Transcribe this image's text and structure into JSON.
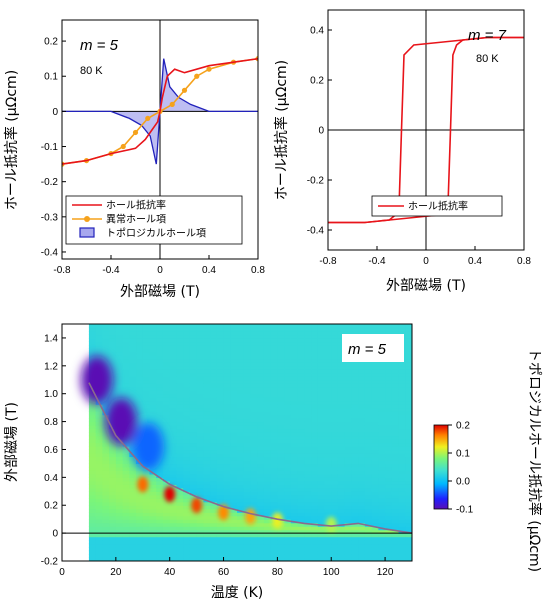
{
  "chart_data": [
    {
      "type": "line",
      "annotation_m": "m = 5",
      "annotation_temp": "80 K",
      "xlabel": "外部磁場 (T)",
      "ylabel": "ホール抵抗率 (μΩcm)",
      "xlim": [
        -0.8,
        0.8
      ],
      "ylim": [
        -0.42,
        0.26
      ],
      "x_ticks": [
        "-0.8",
        "-0.4",
        "0",
        "0.4",
        "0.8"
      ],
      "y_ticks": [
        "0.2",
        "0.1",
        "0",
        "-0.1",
        "-0.2",
        "-0.3",
        "-0.4"
      ],
      "legend_position": "bottom-left",
      "series": [
        {
          "name": "ホール抵抗率",
          "color": "#e8141a",
          "x": [
            -0.8,
            -0.6,
            -0.4,
            -0.2,
            -0.12,
            -0.06,
            -0.02,
            0.0,
            0.02,
            0.06,
            0.12,
            0.2,
            0.4,
            0.6,
            0.8
          ],
          "y": [
            -0.15,
            -0.14,
            -0.12,
            -0.105,
            -0.08,
            -0.05,
            -0.03,
            0.0,
            0.04,
            0.1,
            0.12,
            0.11,
            0.13,
            0.14,
            0.15
          ]
        },
        {
          "name": "異常ホール項",
          "color": "#f5a21c",
          "x": [
            -0.8,
            -0.6,
            -0.4,
            -0.3,
            -0.2,
            -0.1,
            0.0,
            0.1,
            0.2,
            0.3,
            0.4,
            0.6,
            0.8
          ],
          "y": [
            -0.15,
            -0.14,
            -0.12,
            -0.1,
            -0.06,
            -0.02,
            0.0,
            0.02,
            0.06,
            0.1,
            0.12,
            0.14,
            0.15
          ]
        },
        {
          "name": "トポロジカルホール項",
          "color": "#2222bb",
          "x": [
            -0.8,
            -0.4,
            -0.25,
            -0.15,
            -0.08,
            -0.03,
            0.0,
            0.03,
            0.08,
            0.15,
            0.25,
            0.4,
            0.8
          ],
          "y": [
            0.0,
            0.0,
            -0.02,
            -0.04,
            -0.07,
            -0.15,
            0.0,
            0.15,
            0.07,
            0.04,
            0.02,
            0.0,
            0.0
          ]
        }
      ]
    },
    {
      "type": "line",
      "annotation_m": "m = 7",
      "annotation_temp": "80 K",
      "xlabel": "外部磁場 (T)",
      "ylabel": "ホール抵抗率 (μΩcm)",
      "xlim": [
        -0.8,
        0.8
      ],
      "ylim": [
        -0.48,
        0.48
      ],
      "x_ticks": [
        "-0.8",
        "-0.4",
        "0",
        "0.4",
        "0.8"
      ],
      "y_ticks": [
        "0.4",
        "0.2",
        "0",
        "-0.2",
        "-0.4"
      ],
      "legend_position": "bottom-right",
      "series": [
        {
          "name": "ホール抵抗率",
          "color": "#e8141a",
          "sweep_down": {
            "x": [
              0.8,
              0.5,
              0.3,
              0.25,
              0.22,
              0.2,
              0.18,
              0.1,
              -0.1,
              -0.3,
              -0.5,
              -0.8
            ],
            "y": [
              0.37,
              0.37,
              0.36,
              0.34,
              0.3,
              0.0,
              -0.3,
              -0.34,
              -0.35,
              -0.36,
              -0.37,
              -0.37
            ]
          },
          "sweep_up": {
            "x": [
              -0.8,
              -0.5,
              -0.3,
              -0.25,
              -0.22,
              -0.2,
              -0.18,
              -0.1,
              0.1,
              0.3,
              0.5,
              0.8
            ],
            "y": [
              -0.37,
              -0.37,
              -0.36,
              -0.34,
              -0.3,
              0.0,
              0.3,
              0.34,
              0.35,
              0.36,
              0.37,
              0.37
            ]
          }
        }
      ]
    },
    {
      "type": "heatmap",
      "annotation_m": "m = 5",
      "xlabel": "温度 (K)",
      "ylabel": "外部磁場 (T)",
      "colorbar_label": "トポロジカルホール抵抗率 (μΩcm)",
      "xlim": [
        0,
        130
      ],
      "ylim": [
        -0.2,
        1.5
      ],
      "x_ticks": [
        "0",
        "20",
        "40",
        "60",
        "80",
        "100",
        "120"
      ],
      "y_ticks": [
        "1.4",
        "1.2",
        "1.0",
        "0.8",
        "0.6",
        "0.4",
        "0.2",
        "0",
        "-0.2"
      ],
      "colorbar_range": [
        -0.1,
        0.2
      ],
      "colorbar_ticks": [
        "0.2",
        "0.1",
        "0.0",
        "-0.1"
      ],
      "data_x_range": [
        10,
        130
      ],
      "boundary_line": {
        "x": [
          10,
          20,
          30,
          40,
          50,
          60,
          70,
          80,
          90,
          100,
          110,
          120,
          130
        ],
        "y": [
          1.08,
          0.7,
          0.48,
          0.35,
          0.26,
          0.19,
          0.14,
          0.1,
          0.07,
          0.05,
          0.07,
          0.03,
          0.0
        ]
      },
      "hotspots": [
        {
          "T": 30,
          "B": 0.35,
          "v": 0.17
        },
        {
          "T": 40,
          "B": 0.28,
          "v": 0.2
        },
        {
          "T": 50,
          "B": 0.2,
          "v": 0.18
        },
        {
          "T": 60,
          "B": 0.15,
          "v": 0.16
        },
        {
          "T": 70,
          "B": 0.12,
          "v": 0.15
        },
        {
          "T": 80,
          "B": 0.09,
          "v": 0.12
        },
        {
          "T": 100,
          "B": 0.06,
          "v": 0.1
        }
      ],
      "coldspots": [
        {
          "T": 13,
          "B": 1.1,
          "v": -0.12
        },
        {
          "T": 22,
          "B": 0.8,
          "v": -0.12
        },
        {
          "T": 32,
          "B": 0.62,
          "v": -0.04
        }
      ]
    }
  ]
}
